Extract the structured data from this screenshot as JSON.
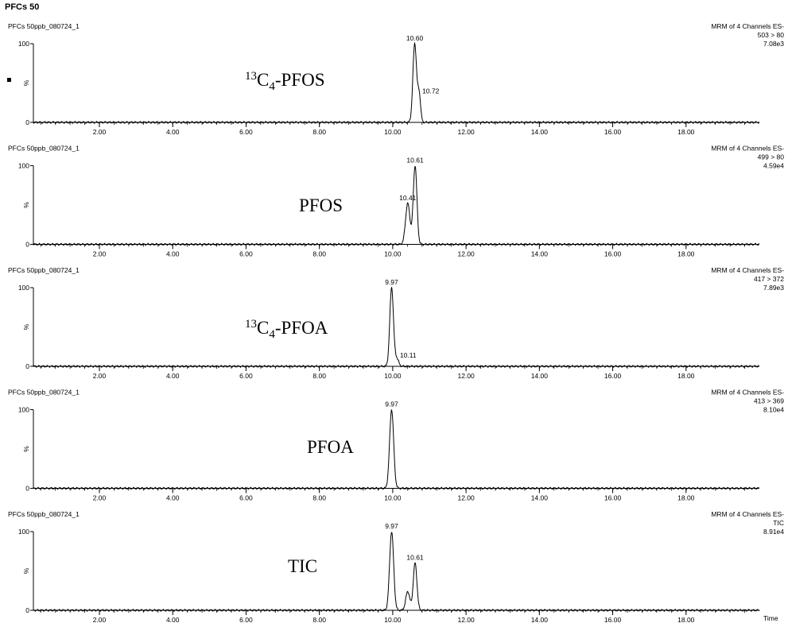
{
  "title": "PFCs 50",
  "x_axis_label": "Time",
  "x_ticks": [
    "2.00",
    "4.00",
    "6.00",
    "8.00",
    "10.00",
    "12.00",
    "14.00",
    "16.00",
    "18.00"
  ],
  "y_top_label": "100",
  "y_bottom_label": "0",
  "y_axis_symbol": "%",
  "chart_data": [
    {
      "type": "line",
      "sample": "PFCs 50ppb_080724_1",
      "channel": "MRM of 4 Channels ES-",
      "transition": "503 > 80",
      "intensity": "7.08e3",
      "compound": {
        "sup": "13",
        "main": "C",
        "sub": "4",
        "rest": "-PFOS"
      },
      "xlim": [
        0.2,
        20.0
      ],
      "ylim": [
        0,
        100
      ],
      "peaks": [
        {
          "rt": 10.6,
          "label": "10.60",
          "height": 100,
          "width": 0.05
        },
        {
          "rt": 10.72,
          "label": "10.72",
          "height": 36,
          "width": 0.04
        }
      ]
    },
    {
      "type": "line",
      "sample": "PFCs 50ppb_080724_1",
      "channel": "MRM of 4 Channels ES-",
      "transition": "499 > 80",
      "intensity": "4.59e4",
      "compound": {
        "sup": "",
        "main": "PFOS",
        "sub": "",
        "rest": ""
      },
      "xlim": [
        0.2,
        20.0
      ],
      "ylim": [
        0,
        100
      ],
      "peaks": [
        {
          "rt": 10.41,
          "label": "10.41",
          "height": 52,
          "width": 0.06
        },
        {
          "rt": 10.61,
          "label": "10.61",
          "height": 100,
          "width": 0.05
        }
      ]
    },
    {
      "type": "line",
      "sample": "PFCs 50ppb_080724_1",
      "channel": "MRM of 4 Channels ES-",
      "transition": "417 > 372",
      "intensity": "7.89e3",
      "compound": {
        "sup": "13",
        "main": "C",
        "sub": "4",
        "rest": "-PFOA"
      },
      "xlim": [
        0.2,
        20.0
      ],
      "ylim": [
        0,
        100
      ],
      "peaks": [
        {
          "rt": 9.97,
          "label": "9.97",
          "height": 100,
          "width": 0.05
        },
        {
          "rt": 10.11,
          "label": "10.11",
          "height": 10,
          "width": 0.05
        }
      ]
    },
    {
      "type": "line",
      "sample": "PFCs 50ppb_080724_1",
      "channel": "MRM of 4 Channels ES-",
      "transition": "413 > 369",
      "intensity": "8.10e4",
      "compound": {
        "sup": "",
        "main": "PFOA",
        "sub": "",
        "rest": ""
      },
      "xlim": [
        0.2,
        20.0
      ],
      "ylim": [
        0,
        100
      ],
      "peaks": [
        {
          "rt": 9.97,
          "label": "9.97",
          "height": 100,
          "width": 0.055
        }
      ]
    },
    {
      "type": "line",
      "sample": "PFCs 50ppb_080724_1",
      "channel": "MRM of 4 Channels ES-",
      "transition": "TIC",
      "intensity": "8.91e4",
      "compound": {
        "sup": "",
        "main": "TIC",
        "sub": "",
        "rest": ""
      },
      "xlim": [
        0.2,
        20.0
      ],
      "ylim": [
        0,
        100
      ],
      "peaks": [
        {
          "rt": 9.97,
          "label": "9.97",
          "height": 100,
          "width": 0.055
        },
        {
          "rt": 10.41,
          "label": "",
          "height": 24,
          "width": 0.055
        },
        {
          "rt": 10.61,
          "label": "10.61",
          "height": 60,
          "width": 0.05
        }
      ]
    }
  ]
}
